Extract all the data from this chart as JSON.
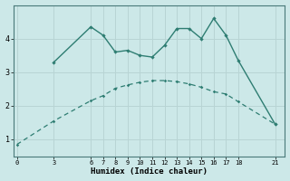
{
  "xlabel": "Humidex (Indice chaleur)",
  "background_color": "#cce8e8",
  "line_color": "#2e7d72",
  "grid_color": "#b8d4d4",
  "xticks": [
    0,
    3,
    6,
    7,
    8,
    9,
    10,
    11,
    12,
    13,
    14,
    15,
    16,
    17,
    18,
    21
  ],
  "ylim": [
    0.5,
    5.0
  ],
  "xlim": [
    -0.3,
    21.8
  ],
  "yticks": [
    1,
    2,
    3,
    4
  ],
  "curve1_x": [
    3,
    6,
    7,
    8,
    9,
    10,
    11,
    12,
    13,
    14,
    15,
    16,
    17,
    18,
    21
  ],
  "curve1_y": [
    3.3,
    4.35,
    4.1,
    3.6,
    3.65,
    3.5,
    3.45,
    3.8,
    4.3,
    4.3,
    4.0,
    4.6,
    4.1,
    3.35,
    1.45
  ],
  "curve2_x": [
    0,
    3,
    6,
    7,
    8,
    9,
    10,
    11,
    12,
    13,
    14,
    15,
    16,
    17,
    18,
    21
  ],
  "curve2_y": [
    0.85,
    1.55,
    2.15,
    2.3,
    2.52,
    2.62,
    2.7,
    2.75,
    2.75,
    2.72,
    2.65,
    2.55,
    2.42,
    2.35,
    2.12,
    1.45
  ]
}
